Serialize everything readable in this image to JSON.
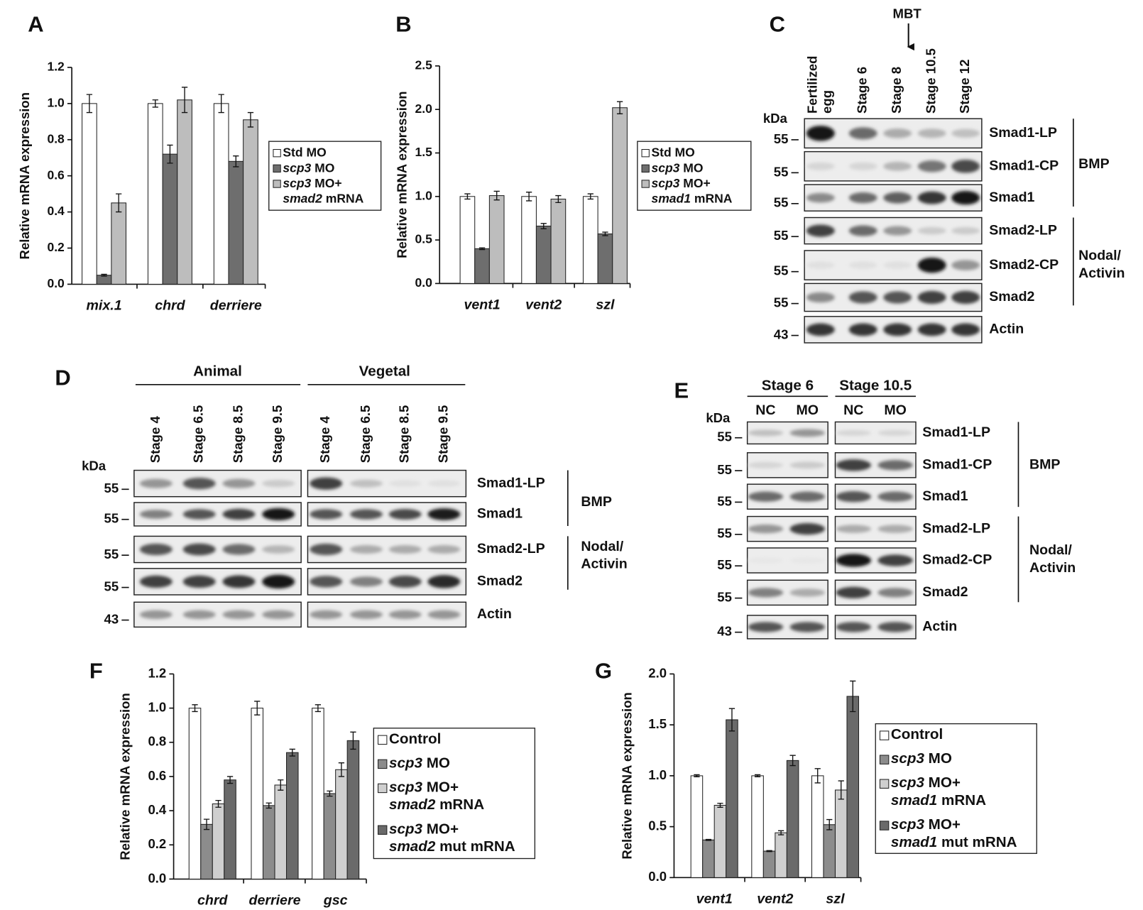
{
  "chart_data": [
    {
      "type": "bar",
      "panel": "A",
      "ylabel": "Relative mRNA expression",
      "categories": [
        "mix.1",
        "chrd",
        "derriere"
      ],
      "series": [
        {
          "name": "Std MO",
          "color": "#ffffff",
          "values": [
            1.0,
            1.0,
            1.0
          ],
          "errors": [
            0.05,
            0.02,
            0.05
          ]
        },
        {
          "name": "scp3 MO",
          "color": "#6e6e6e",
          "values": [
            0.05,
            0.72,
            0.68
          ],
          "errors": [
            0.005,
            0.05,
            0.03
          ]
        },
        {
          "name": "scp3 MO+\nsmad2 mRNA",
          "color": "#bdbdbd",
          "values": [
            0.45,
            1.02,
            0.91
          ],
          "errors": [
            0.05,
            0.07,
            0.04
          ]
        }
      ],
      "ylim": [
        0,
        1.2
      ],
      "yticks": [
        {
          "value": 0,
          "label": "0.0"
        },
        0.2,
        0.4,
        0.6,
        0.8,
        {
          "value": 1,
          "label": "1.0"
        },
        1.2
      ]
    },
    {
      "type": "bar",
      "panel": "B",
      "ylabel": "Relative mRNA expression",
      "categories": [
        "vent1",
        "vent2",
        "szl"
      ],
      "series": [
        {
          "name": "Std MO",
          "color": "#ffffff",
          "values": [
            1.0,
            1.0,
            1.0
          ],
          "errors": [
            0.03,
            0.05,
            0.03
          ]
        },
        {
          "name": "scp3 MO",
          "color": "#6e6e6e",
          "values": [
            0.4,
            0.66,
            0.57
          ],
          "errors": [
            0.01,
            0.03,
            0.02
          ]
        },
        {
          "name": "scp3 MO+\nsmad1 mRNA",
          "color": "#bdbdbd",
          "values": [
            1.01,
            0.97,
            2.02
          ],
          "errors": [
            0.05,
            0.04,
            0.07
          ]
        }
      ],
      "ylim": [
        0,
        2.5
      ],
      "yticks": [
        {
          "value": 0,
          "label": "0.0"
        },
        0.5,
        {
          "value": 1,
          "label": "1.0"
        },
        1.5,
        {
          "value": 2,
          "label": "2.0"
        },
        2.5
      ]
    },
    {
      "type": "bar",
      "panel": "F",
      "ylabel": "Relative mRNA expression",
      "categories": [
        "chrd",
        "derriere",
        "gsc"
      ],
      "series": [
        {
          "name": "Control",
          "color": "#ffffff",
          "values": [
            1.0,
            1.0,
            1.0
          ],
          "errors": [
            0.02,
            0.04,
            0.02
          ]
        },
        {
          "name": "scp3 MO",
          "color": "#8c8c8c",
          "values": [
            0.32,
            0.43,
            0.5
          ],
          "errors": [
            0.03,
            0.015,
            0.015
          ]
        },
        {
          "name": "scp3 MO+\nsmad2 mRNA",
          "color": "#cfcfcf",
          "values": [
            0.44,
            0.55,
            0.64
          ],
          "errors": [
            0.02,
            0.03,
            0.04
          ]
        },
        {
          "name": "scp3 MO+\nsmad2 mut mRNA",
          "color": "#6a6a6a",
          "values": [
            0.58,
            0.74,
            0.81
          ],
          "errors": [
            0.02,
            0.02,
            0.05
          ]
        }
      ],
      "ylim": [
        0,
        1.2
      ],
      "yticks": [
        {
          "value": 0,
          "label": "0.0"
        },
        0.2,
        0.4,
        0.6,
        0.8,
        {
          "value": 1,
          "label": "1.0"
        },
        1.2
      ]
    },
    {
      "type": "bar",
      "panel": "G",
      "ylabel": "Relative mRNA expression",
      "categories": [
        "vent1",
        "vent2",
        "szl"
      ],
      "series": [
        {
          "name": "Control",
          "color": "#ffffff",
          "values": [
            1.0,
            1.0,
            1.0
          ],
          "errors": [
            0.01,
            0.01,
            0.07
          ]
        },
        {
          "name": "scp3 MO",
          "color": "#8c8c8c",
          "values": [
            0.37,
            0.26,
            0.52
          ],
          "errors": [
            0.005,
            0.005,
            0.05
          ]
        },
        {
          "name": "scp3 MO+\nsmad1 mRNA",
          "color": "#cfcfcf",
          "values": [
            0.71,
            0.44,
            0.86
          ],
          "errors": [
            0.02,
            0.02,
            0.09
          ]
        },
        {
          "name": "scp3 MO+\nsmad1 mut mRNA",
          "color": "#6a6a6a",
          "values": [
            1.55,
            1.15,
            1.78
          ],
          "errors": [
            0.11,
            0.05,
            0.15
          ]
        }
      ],
      "ylim": [
        0,
        2.0
      ],
      "yticks": [
        {
          "value": 0,
          "label": "0.0"
        },
        0.5,
        {
          "value": 1,
          "label": "1.0"
        },
        1.5,
        {
          "value": 2,
          "label": "2.0"
        }
      ]
    }
  ],
  "blots": [
    {
      "panel": "C",
      "annotation": "MBT",
      "kda_label": "kDa",
      "lanes": [
        "Fertilized\negg",
        "Stage 6",
        "Stage 8",
        "Stage 10.5",
        "Stage 12"
      ],
      "rows": [
        {
          "label": "Smad1-LP",
          "kda": 55
        },
        {
          "label": "Smad1-CP",
          "kda": 55
        },
        {
          "label": "Smad1",
          "kda": 55
        },
        {
          "label": "Smad2-LP",
          "kda": 55
        },
        {
          "label": "Smad2-CP",
          "kda": 55
        },
        {
          "label": "Smad2",
          "kda": 55
        },
        {
          "label": "Actin",
          "kda": 43
        }
      ],
      "groups": [
        "BMP",
        "Nodal/\nActivin"
      ]
    },
    {
      "panel": "D",
      "kda_label": "kDa",
      "headers": [
        "Animal",
        "Vegetal"
      ],
      "lanes": [
        "Stage 4",
        "Stage 6.5",
        "Stage 8.5",
        "Stage 9.5",
        "Stage 4",
        "Stage 6.5",
        "Stage 8.5",
        "Stage 9.5"
      ],
      "rows": [
        {
          "label": "Smad1-LP",
          "kda": 55
        },
        {
          "label": "Smad1",
          "kda": 55
        },
        {
          "label": "Smad2-LP",
          "kda": 55
        },
        {
          "label": "Smad2",
          "kda": 55
        },
        {
          "label": "Actin",
          "kda": 43
        }
      ],
      "groups": [
        "BMP",
        "Nodal/\nActivin"
      ]
    },
    {
      "panel": "E",
      "kda_label": "kDa",
      "headers": [
        "Stage 6",
        "Stage 10.5"
      ],
      "lanes": [
        "NC",
        "MO",
        "NC",
        "MO"
      ],
      "rows": [
        {
          "label": "Smad1-LP",
          "kda": 55
        },
        {
          "label": "Smad1-CP",
          "kda": 55
        },
        {
          "label": "Smad1",
          "kda": 55
        },
        {
          "label": "Smad2-LP",
          "kda": 55
        },
        {
          "label": "Smad2-CP",
          "kda": 55
        },
        {
          "label": "Smad2",
          "kda": 55
        },
        {
          "label": "Actin",
          "kda": 43
        }
      ],
      "groups": [
        "BMP",
        "Nodal/\nActivin"
      ]
    }
  ]
}
